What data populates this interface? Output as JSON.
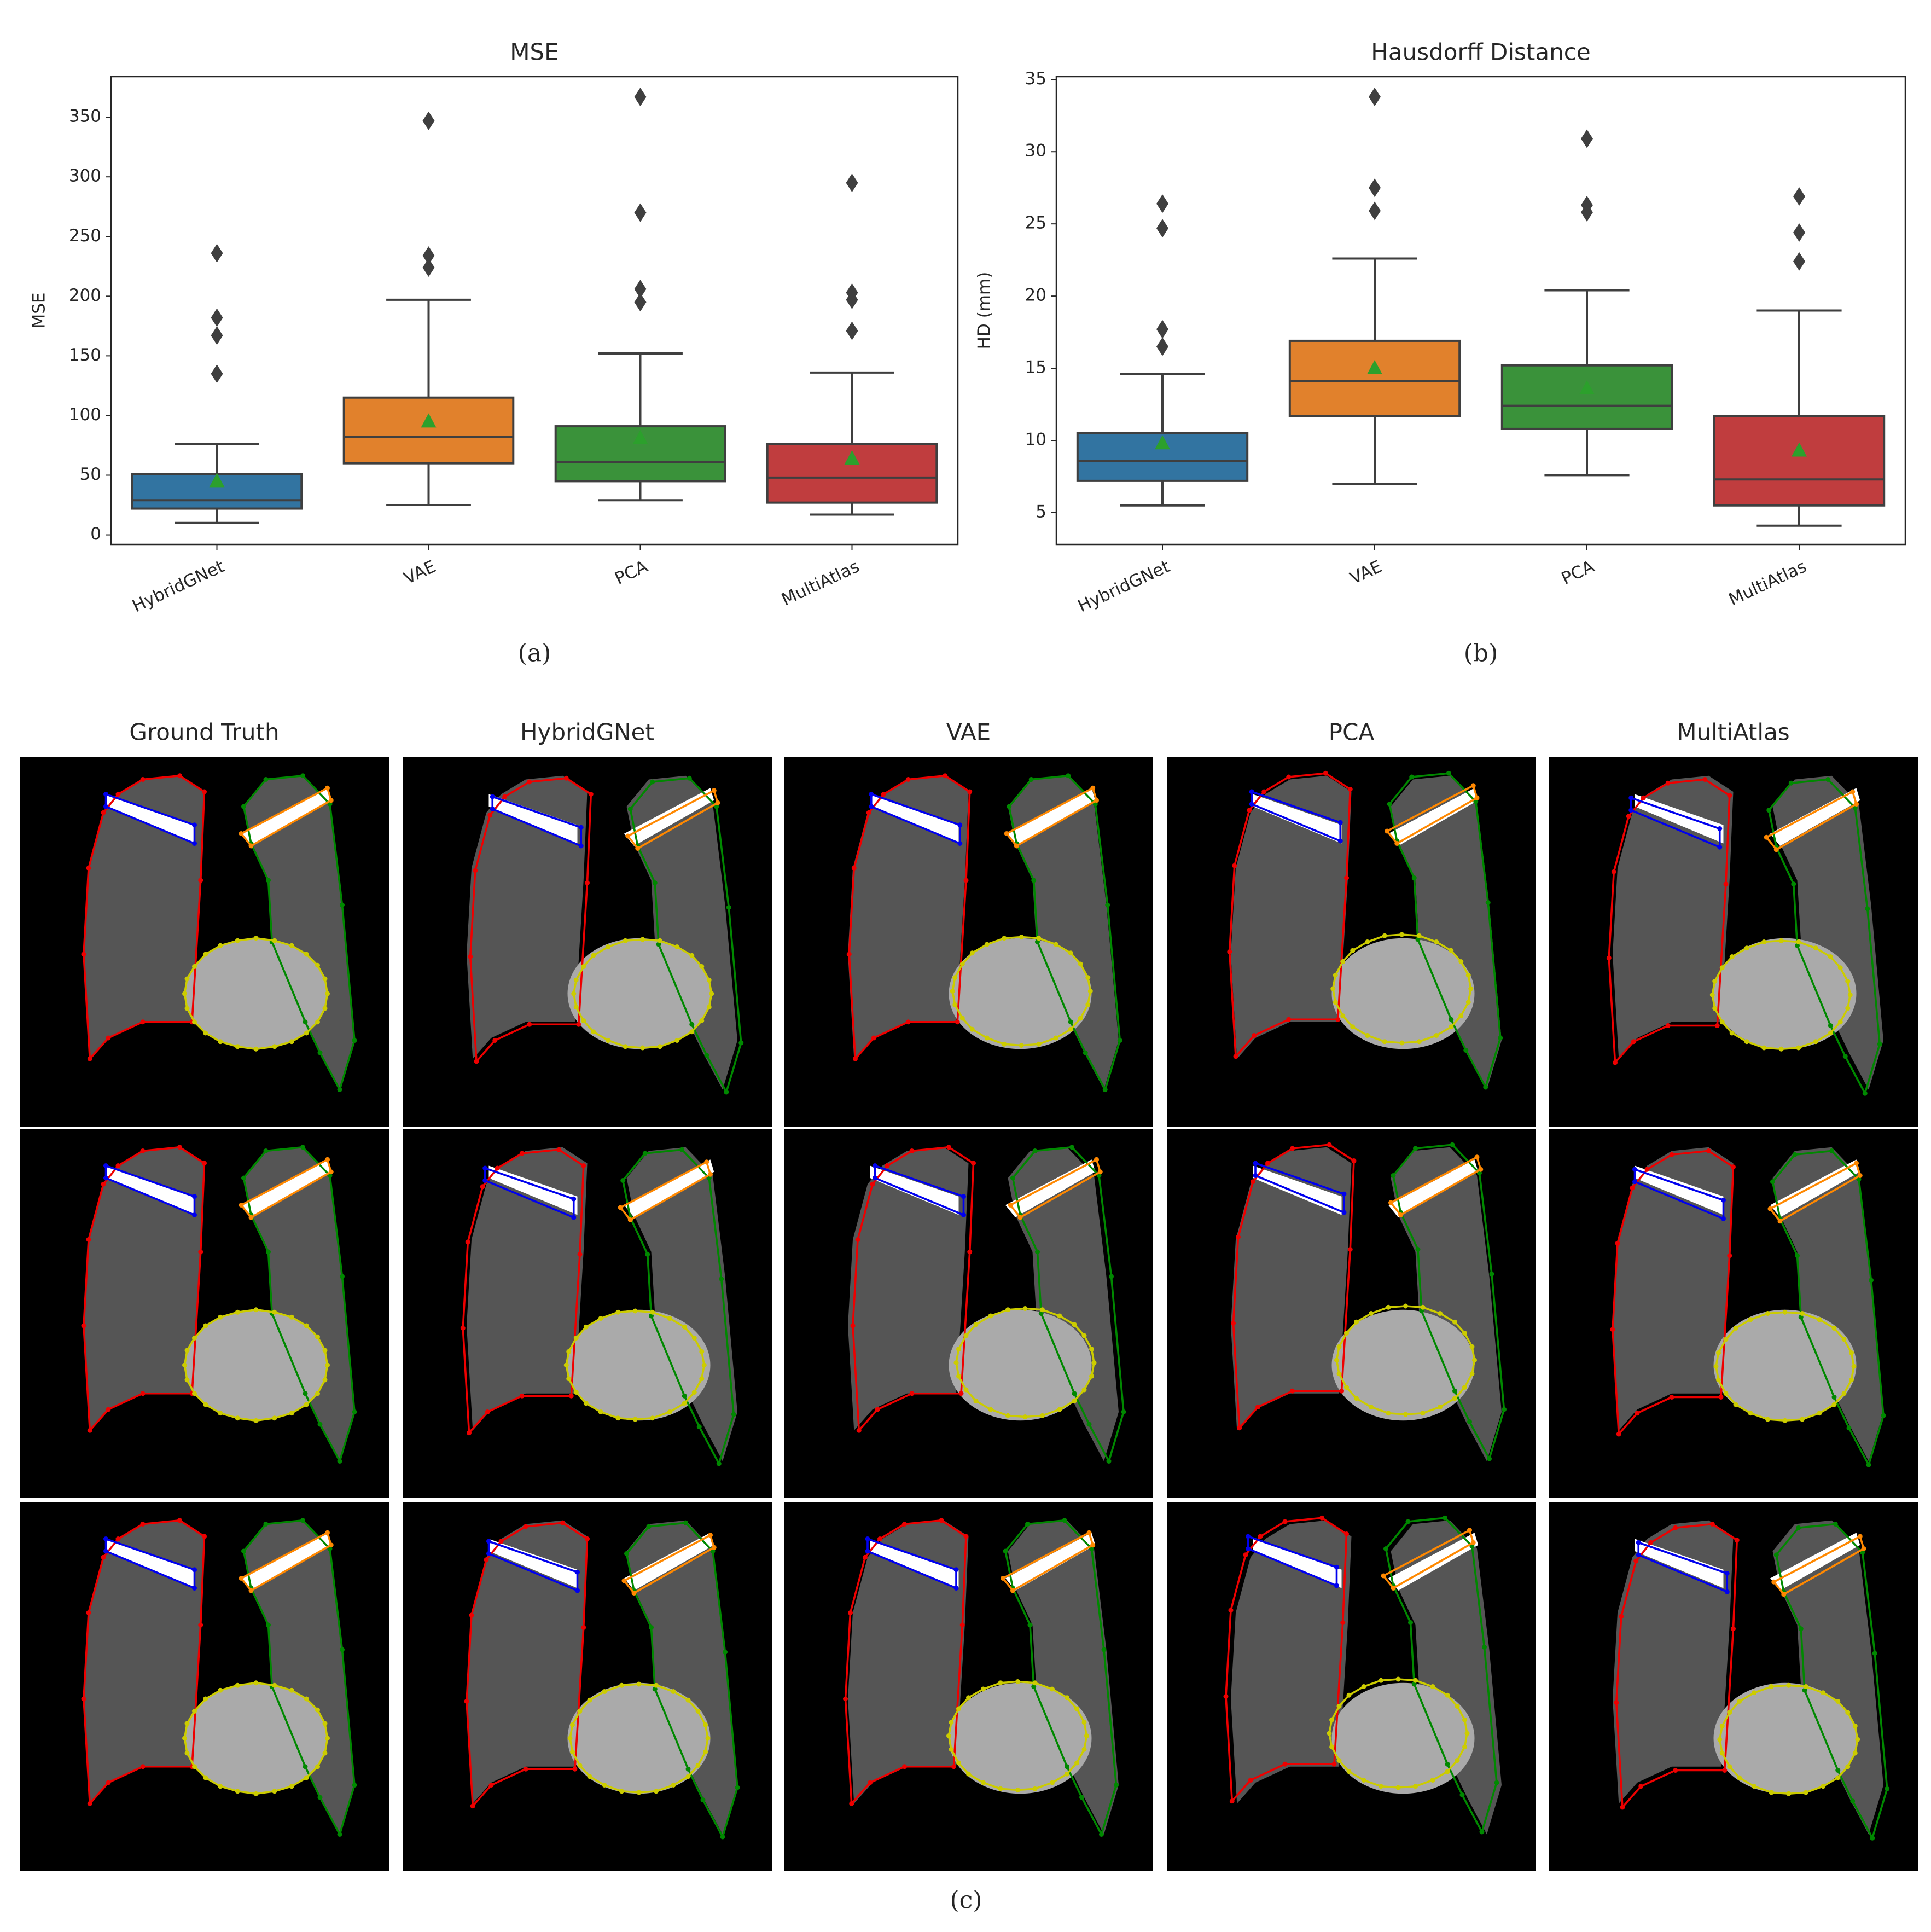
{
  "chart_data": [
    {
      "type": "box",
      "title": "MSE",
      "y_label": "MSE",
      "caption": "(a)",
      "categories": [
        "HybridGNet",
        "VAE",
        "PCA",
        "MultiAtlas"
      ],
      "colors": [
        "#3274a1",
        "#e1812c",
        "#3a923a",
        "#c03d3e"
      ],
      "mean_color": "#2ca02c",
      "ylim": [
        -8,
        384
      ],
      "yticks": [
        0,
        50,
        100,
        150,
        200,
        250,
        300,
        350
      ],
      "boxes": [
        {
          "whislo": 10,
          "q1": 22,
          "med": 29,
          "q3": 51,
          "whishi": 76,
          "mean": 45,
          "fliers": [
            135,
            167,
            182,
            236
          ]
        },
        {
          "whislo": 25,
          "q1": 60,
          "med": 82,
          "q3": 115,
          "whishi": 197,
          "mean": 95,
          "fliers": [
            224,
            234,
            347
          ]
        },
        {
          "whislo": 29,
          "q1": 45,
          "med": 61,
          "q3": 91,
          "whishi": 152,
          "mean": 81,
          "fliers": [
            195,
            206,
            270,
            367
          ]
        },
        {
          "whislo": 17,
          "q1": 27,
          "med": 48,
          "q3": 76,
          "whishi": 136,
          "mean": 64,
          "fliers": [
            171,
            197,
            203,
            295
          ]
        }
      ]
    },
    {
      "type": "box",
      "title": "Hausdorff Distance",
      "y_label": "HD (mm)",
      "caption": "(b)",
      "categories": [
        "HybridGNet",
        "VAE",
        "PCA",
        "MultiAtlas"
      ],
      "colors": [
        "#3274a1",
        "#e1812c",
        "#3a923a",
        "#c03d3e"
      ],
      "mean_color": "#2ca02c",
      "ylim": [
        2.8,
        35.2
      ],
      "yticks": [
        5,
        10,
        15,
        20,
        25,
        30,
        35
      ],
      "boxes": [
        {
          "whislo": 5.5,
          "q1": 7.2,
          "med": 8.6,
          "q3": 10.5,
          "whishi": 14.6,
          "mean": 9.8,
          "fliers": [
            16.5,
            17.7,
            24.7,
            26.4
          ]
        },
        {
          "whislo": 7.0,
          "q1": 11.7,
          "med": 14.1,
          "q3": 16.9,
          "whishi": 22.6,
          "mean": 15.0,
          "fliers": [
            25.9,
            27.5,
            33.8
          ]
        },
        {
          "whislo": 7.6,
          "q1": 10.8,
          "med": 12.4,
          "q3": 15.2,
          "whishi": 20.4,
          "mean": 13.6,
          "fliers": [
            25.8,
            26.3,
            30.9
          ]
        },
        {
          "whislo": 4.1,
          "q1": 5.5,
          "med": 7.3,
          "q3": 11.7,
          "whishi": 19.0,
          "mean": 9.3,
          "fliers": [
            22.4,
            24.4,
            26.9
          ]
        }
      ]
    }
  ],
  "image_grid": {
    "column_titles": [
      "Ground Truth",
      "HybridGNet",
      "VAE",
      "PCA",
      "MultiAtlas"
    ],
    "caption": "(c)"
  }
}
